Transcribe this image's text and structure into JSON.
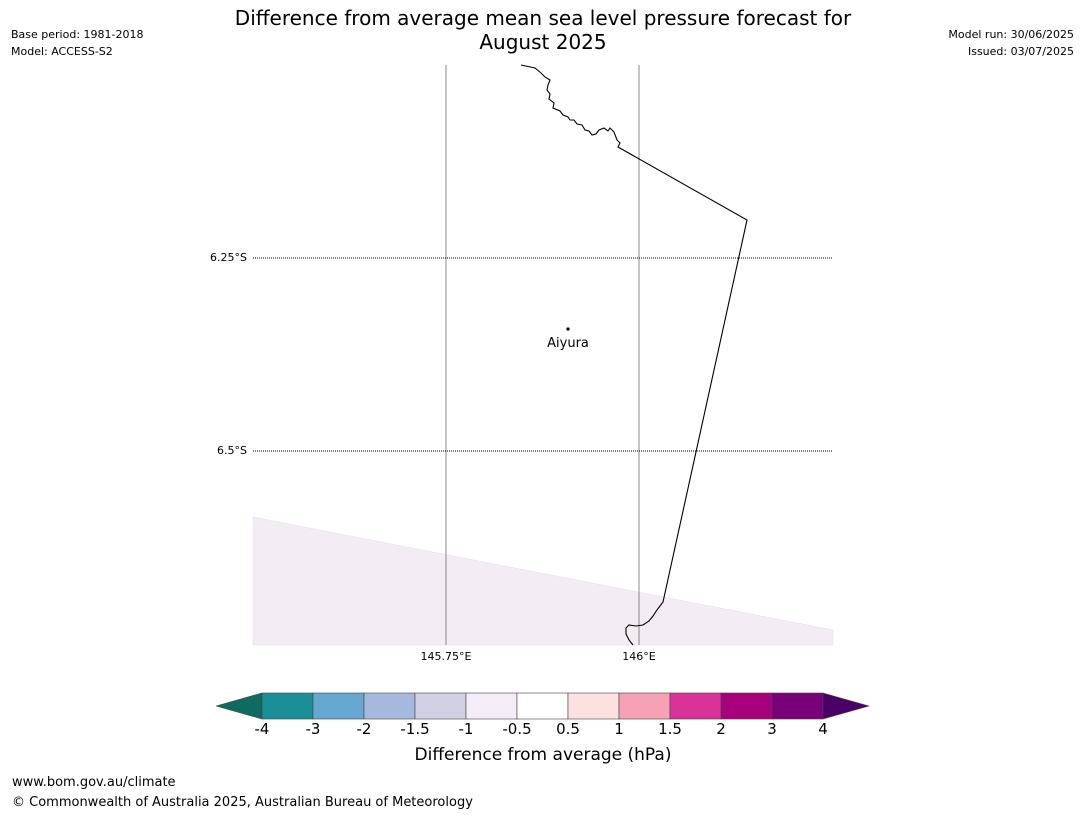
{
  "header": {
    "base_period": "Base period: 1981-2018",
    "model": "Model: ACCESS-S2",
    "title_line1": "Difference from average mean sea level pressure forecast for",
    "title_line2": "August 2025",
    "model_run": "Model run: 30/06/2025",
    "issued": "Issued: 03/07/2025"
  },
  "map": {
    "lat_labels": [
      "6.25°S",
      "6.5°S"
    ],
    "lon_labels": [
      "145.75°E",
      "146°E"
    ],
    "place": "Aiyura",
    "shading_color": "#f3ecf5"
  },
  "colorbar": {
    "ticks": [
      "-4",
      "-3",
      "-2",
      "-1.5",
      "-1",
      "-0.5",
      "0.5",
      "1",
      "1.5",
      "2",
      "3",
      "4"
    ],
    "colors": [
      "#0f6b62",
      "#1a8f97",
      "#66a8d0",
      "#a5b9dc",
      "#d1cfe4",
      "#f4ecf6",
      "#ffffff",
      "#fde0e0",
      "#f7a1b6",
      "#d9339a",
      "#a8007d",
      "#7a007a",
      "#4b0066"
    ],
    "label": "Difference from average (hPa)"
  },
  "footer": {
    "url": "www.bom.gov.au/climate",
    "copyright": "© Commonwealth of Australia 2025, Australian Bureau of Meteorology"
  }
}
